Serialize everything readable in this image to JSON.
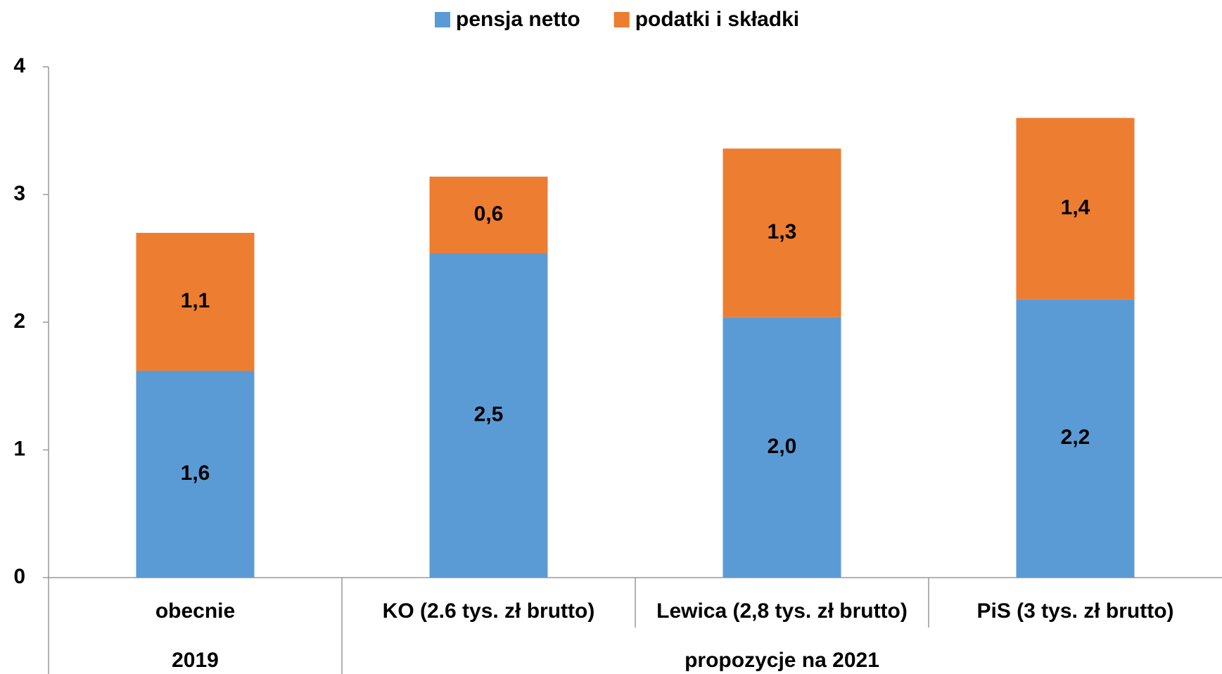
{
  "chart_data": {
    "type": "stacked_bar",
    "categories": [
      "obecnie",
      "KO (2.6 tys. zł brutto)",
      "Lewica (2,8 tys. zł brutto)",
      "PiS (3 tys. zł brutto)"
    ],
    "groups": [
      {
        "label": "2019",
        "span": 1
      },
      {
        "label": "propozycje na 2021",
        "span": 3
      }
    ],
    "series": [
      {
        "name": "pensja netto",
        "color": "#5b9bd5",
        "values": [
          1.62,
          2.54,
          2.04,
          2.18
        ],
        "value_labels": [
          "1,6",
          "2,5",
          "2,0",
          "2,2"
        ]
      },
      {
        "name": "podatki i składki",
        "color": "#ed7d31",
        "values": [
          1.08,
          0.6,
          1.32,
          1.42
        ],
        "value_labels": [
          "1,1",
          "0,6",
          "1,3",
          "1,4"
        ]
      }
    ],
    "ylim": [
      0,
      4
    ],
    "yticks": [
      0,
      1,
      2,
      3,
      4
    ],
    "grid": false,
    "legend": "top"
  }
}
